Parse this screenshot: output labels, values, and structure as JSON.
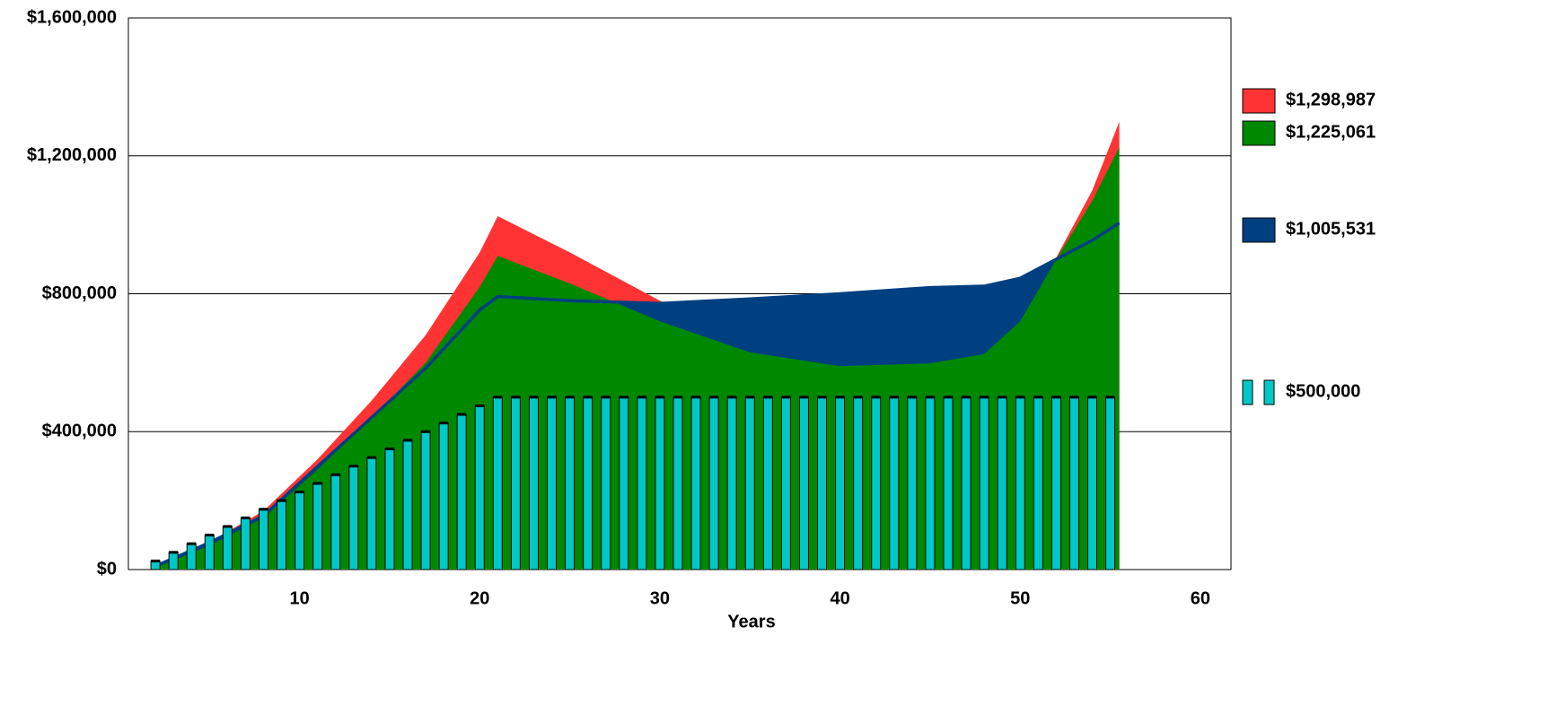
{
  "chart_data": {
    "type": "area",
    "x_label": "Years",
    "xlim": [
      0.5,
      61.7
    ],
    "xticks": [
      10,
      20,
      30,
      40,
      50,
      60
    ],
    "ylim": [
      0,
      1600000
    ],
    "yticks": [
      {
        "value": 0,
        "label": "$0"
      },
      {
        "value": 400000,
        "label": "$400,000"
      },
      {
        "value": 800000,
        "label": "$800,000"
      },
      {
        "value": 1200000,
        "label": "$1,200,000"
      },
      {
        "value": 1600000,
        "label": "$1,600,000"
      }
    ],
    "grid": true,
    "series": [
      {
        "name": "$1,298,987",
        "type": "area",
        "color": "#ff3333",
        "x": [
          2,
          5,
          8,
          11,
          14,
          17,
          20,
          21,
          25,
          30,
          35,
          40,
          45,
          48,
          50,
          52,
          54,
          55.5
        ],
        "values": [
          8000,
          80000,
          170000,
          320000,
          490000,
          680000,
          920000,
          1025000,
          920000,
          780000,
          670000,
          610000,
          605000,
          630000,
          725000,
          905000,
          1100000,
          1298987
        ]
      },
      {
        "name": "$1,225,061",
        "type": "area",
        "color": "#008800",
        "x": [
          2,
          5,
          8,
          11,
          14,
          17,
          20,
          21,
          25,
          30,
          35,
          40,
          45,
          48,
          50,
          52,
          54,
          55.5
        ],
        "values": [
          5000,
          70000,
          150000,
          290000,
          440000,
          600000,
          820000,
          910000,
          830000,
          720000,
          630000,
          590000,
          598000,
          625000,
          720000,
          900000,
          1070000,
          1225061
        ]
      },
      {
        "name": "$1,005,531",
        "type": "area-line",
        "color": "#003f80",
        "x": [
          2,
          5,
          8,
          11,
          14,
          17,
          20,
          21,
          25,
          30,
          35,
          40,
          45,
          48,
          50,
          52,
          54,
          55.5
        ],
        "values": [
          10000,
          78000,
          156000,
          299000,
          441000,
          584000,
          753000,
          792000,
          780000,
          772000,
          785000,
          800000,
          818000,
          822000,
          845000,
          900000,
          955000,
          1005531
        ]
      },
      {
        "name": "$500,000",
        "type": "bar",
        "color": "#00c8c8",
        "x": [
          2,
          3,
          4,
          5,
          6,
          7,
          8,
          9,
          10,
          11,
          12,
          13,
          14,
          15,
          16,
          17,
          18,
          19,
          20,
          21,
          22,
          23,
          24,
          25,
          26,
          27,
          28,
          29,
          30,
          31,
          32,
          33,
          34,
          35,
          36,
          37,
          38,
          39,
          40,
          41,
          42,
          43,
          44,
          45,
          46,
          47,
          48,
          49,
          50,
          51,
          52,
          53,
          54,
          55
        ],
        "values": [
          25000,
          50000,
          75000,
          100000,
          125000,
          150000,
          175000,
          200000,
          225000,
          250000,
          275000,
          300000,
          325000,
          350000,
          375000,
          400000,
          425000,
          450000,
          475000,
          500000,
          500000,
          500000,
          500000,
          500000,
          500000,
          500000,
          500000,
          500000,
          500000,
          500000,
          500000,
          500000,
          500000,
          500000,
          500000,
          500000,
          500000,
          500000,
          500000,
          500000,
          500000,
          500000,
          500000,
          500000,
          500000,
          500000,
          500000,
          500000,
          500000,
          500000,
          500000,
          500000,
          500000,
          500000
        ]
      }
    ]
  }
}
